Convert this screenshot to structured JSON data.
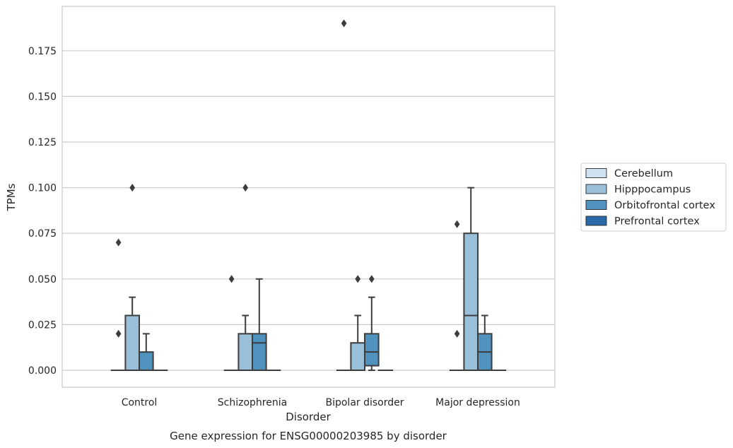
{
  "chart_data": {
    "type": "box",
    "title": "Gene expression for ENSG00000203985 by disorder",
    "xlabel": "Disorder",
    "ylabel": "TPMs",
    "categories": [
      "Control",
      "Schizophrenia",
      "Bipolar disorder",
      "Major depression"
    ],
    "ylim": [
      -0.0095,
      0.1975
    ],
    "yticks": [
      "0.000",
      "0.025",
      "0.050",
      "0.075",
      "0.100",
      "0.125",
      "0.150",
      "0.175"
    ],
    "grid": "horizontal",
    "legend_position": "right",
    "series": [
      {
        "name": "Cerebellum",
        "color": "#d0e1f2",
        "boxes": [
          {
            "q1": 0,
            "median": 0,
            "q3": 0,
            "whisker_low": 0,
            "whisker_high": 0,
            "outliers": [
              0.02,
              0.07
            ]
          },
          {
            "q1": 0,
            "median": 0,
            "q3": 0,
            "whisker_low": 0,
            "whisker_high": 0,
            "outliers": [
              0.05
            ]
          },
          {
            "q1": 0,
            "median": 0,
            "q3": 0,
            "whisker_low": 0,
            "whisker_high": 0,
            "outliers": [
              0.19
            ]
          },
          {
            "q1": 0,
            "median": 0,
            "q3": 0,
            "whisker_low": 0,
            "whisker_high": 0,
            "outliers": [
              0.02,
              0.08
            ]
          }
        ]
      },
      {
        "name": "Hipppocampus",
        "color": "#9ac0d9",
        "boxes": [
          {
            "q1": 0,
            "median": 0,
            "q3": 0.03,
            "whisker_low": 0,
            "whisker_high": 0.04,
            "outliers": [
              0.1
            ]
          },
          {
            "q1": 0,
            "median": 0,
            "q3": 0.02,
            "whisker_low": 0,
            "whisker_high": 0.03,
            "outliers": [
              0.1
            ]
          },
          {
            "q1": 0,
            "median": 0,
            "q3": 0.015,
            "whisker_low": 0,
            "whisker_high": 0.03,
            "outliers": [
              0.05
            ]
          },
          {
            "q1": 0,
            "median": 0.03,
            "q3": 0.075,
            "whisker_low": 0,
            "whisker_high": 0.1,
            "outliers": []
          }
        ]
      },
      {
        "name": "Orbitofrontal cortex",
        "color": "#5092be",
        "boxes": [
          {
            "q1": 0,
            "median": 0,
            "q3": 0.01,
            "whisker_low": 0,
            "whisker_high": 0.02,
            "outliers": []
          },
          {
            "q1": 0,
            "median": 0.015,
            "q3": 0.02,
            "whisker_low": 0,
            "whisker_high": 0.05,
            "outliers": []
          },
          {
            "q1": 0.0025,
            "median": 0.01,
            "q3": 0.02,
            "whisker_low": 0,
            "whisker_high": 0.04,
            "outliers": [
              0.05
            ]
          },
          {
            "q1": 0,
            "median": 0.01,
            "q3": 0.02,
            "whisker_low": 0,
            "whisker_high": 0.03,
            "outliers": []
          }
        ]
      },
      {
        "name": "Prefrontal cortex",
        "color": "#2b6aa8",
        "boxes": [
          {
            "q1": 0,
            "median": 0,
            "q3": 0,
            "whisker_low": 0,
            "whisker_high": 0,
            "outliers": []
          },
          {
            "q1": 0,
            "median": 0,
            "q3": 0,
            "whisker_low": 0,
            "whisker_high": 0,
            "outliers": []
          },
          {
            "q1": 0,
            "median": 0,
            "q3": 0,
            "whisker_low": 0,
            "whisker_high": 0,
            "outliers": []
          },
          {
            "q1": 0,
            "median": 0,
            "q3": 0,
            "whisker_low": 0,
            "whisker_high": 0,
            "outliers": []
          }
        ]
      }
    ]
  }
}
